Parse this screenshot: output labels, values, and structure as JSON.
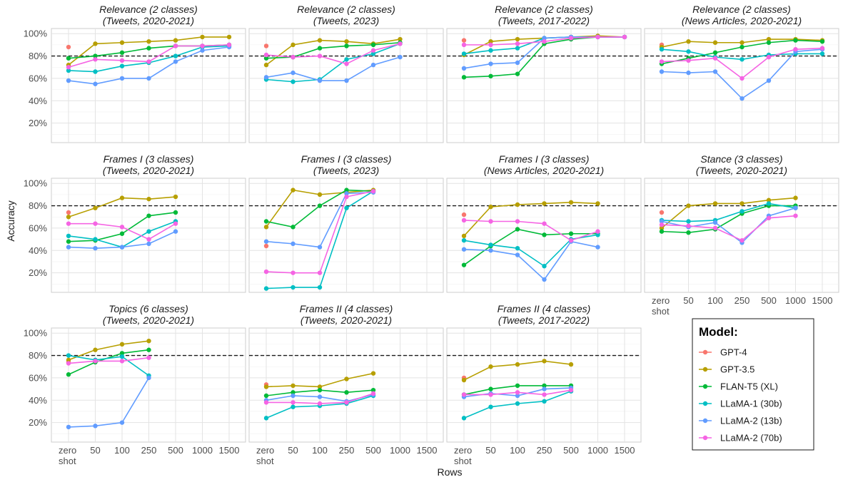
{
  "chart_data": {
    "type": "line",
    "xlabel": "Rows",
    "ylabel": "Accuracy",
    "x_ticks": [
      "zero shot",
      "50",
      "100",
      "250",
      "500",
      "1000",
      "1500"
    ],
    "y_ticks": [
      "20%",
      "40%",
      "60%",
      "80%",
      "100%"
    ],
    "ylim": [
      0,
      100
    ],
    "reference_line": 80,
    "grid": true,
    "legend": {
      "title": "Model:",
      "placement": "bottom-right",
      "entries": [
        {
          "name": "GPT-4",
          "color": "#F8766D"
        },
        {
          "name": "GPT-3.5",
          "color": "#B79F00"
        },
        {
          "name": "FLAN-T5 (XL)",
          "color": "#00BA38"
        },
        {
          "name": "LLaMA-1 (30b)",
          "color": "#00BFC4"
        },
        {
          "name": "LLaMA-2 (13b)",
          "color": "#619CFF"
        },
        {
          "name": "LLaMA-2 (70b)",
          "color": "#F564E3"
        }
      ]
    },
    "panels": [
      {
        "title": [
          "Relevance (2 classes)",
          "(Tweets, 2020-2021)"
        ],
        "series": [
          {
            "model": "GPT-4",
            "values": [
              88
            ]
          },
          {
            "model": "GPT-3.5",
            "values": [
              72,
              91,
              92,
              93,
              94,
              97,
              97
            ]
          },
          {
            "model": "FLAN-T5 (XL)",
            "values": [
              78,
              80,
              83,
              87,
              89,
              89,
              90
            ]
          },
          {
            "model": "LLaMA-1 (30b)",
            "values": [
              67,
              66,
              71,
              74,
              80,
              88,
              89
            ]
          },
          {
            "model": "LLaMA-2 (13b)",
            "values": [
              58,
              55,
              60,
              60,
              75,
              85,
              88
            ]
          },
          {
            "model": "LLaMA-2 (70b)",
            "values": [
              70,
              77,
              76,
              75,
              89,
              89,
              90
            ]
          }
        ]
      },
      {
        "title": [
          "Relevance (2 classes)",
          "(Tweets, 2023)"
        ],
        "series": [
          {
            "model": "GPT-4",
            "values": [
              89
            ]
          },
          {
            "model": "GPT-3.5",
            "values": [
              72,
              90,
              94,
              93,
              91,
              95
            ]
          },
          {
            "model": "FLAN-T5 (XL)",
            "values": [
              78,
              79,
              87,
              89,
              90,
              92
            ]
          },
          {
            "model": "LLaMA-1 (30b)",
            "values": [
              59,
              57,
              59,
              77,
              82,
              91
            ]
          },
          {
            "model": "LLaMA-2 (13b)",
            "values": [
              61,
              65,
              58,
              58,
              72,
              79
            ]
          },
          {
            "model": "LLaMA-2 (70b)",
            "values": [
              81,
              79,
              80,
              73,
              85,
              91
            ]
          }
        ]
      },
      {
        "title": [
          "Relevance (2 classes)",
          "(Tweets, 2017-2022)"
        ],
        "series": [
          {
            "model": "GPT-4",
            "values": [
              94
            ]
          },
          {
            "model": "GPT-3.5",
            "values": [
              81,
              93,
              95,
              96,
              97,
              98,
              97
            ]
          },
          {
            "model": "FLAN-T5 (XL)",
            "values": [
              61,
              62,
              64,
              91,
              95,
              97,
              97
            ]
          },
          {
            "model": "LLaMA-1 (30b)",
            "values": [
              82,
              85,
              87,
              96,
              97,
              97,
              97
            ]
          },
          {
            "model": "LLaMA-2 (13b)",
            "values": [
              69,
              73,
              74,
              96,
              97,
              97,
              97
            ]
          },
          {
            "model": "LLaMA-2 (70b)",
            "values": [
              90,
              90,
              91,
              93,
              96,
              97,
              97
            ]
          }
        ]
      },
      {
        "title": [
          "Relevance (2 classes)",
          "(News Articles, 2020-2021)"
        ],
        "series": [
          {
            "model": "GPT-4",
            "values": [
              90
            ]
          },
          {
            "model": "GPT-3.5",
            "values": [
              88,
              93,
              92,
              92,
              95,
              95,
              94
            ]
          },
          {
            "model": "FLAN-T5 (XL)",
            "values": [
              73,
              78,
              83,
              88,
              92,
              94,
              93
            ]
          },
          {
            "model": "LLaMA-1 (30b)",
            "values": [
              86,
              84,
              79,
              77,
              81,
              82,
              82
            ]
          },
          {
            "model": "LLaMA-2 (13b)",
            "values": [
              66,
              65,
              66,
              42,
              58,
              84,
              86
            ]
          },
          {
            "model": "LLaMA-2 (70b)",
            "values": [
              75,
              76,
              78,
              60,
              79,
              86,
              87
            ]
          }
        ]
      },
      {
        "title": [
          "Frames I (3 classes)",
          "(Tweets, 2020-2021)"
        ],
        "series": [
          {
            "model": "GPT-4",
            "values": [
              74
            ]
          },
          {
            "model": "GPT-3.5",
            "values": [
              70,
              78,
              87,
              86,
              88
            ]
          },
          {
            "model": "FLAN-T5 (XL)",
            "values": [
              48,
              49,
              55,
              71,
              74
            ]
          },
          {
            "model": "LLaMA-1 (30b)",
            "values": [
              53,
              50,
              43,
              57,
              66
            ]
          },
          {
            "model": "LLaMA-2 (13b)",
            "values": [
              43,
              42,
              43,
              46,
              57
            ]
          },
          {
            "model": "LLaMA-2 (70b)",
            "values": [
              64,
              64,
              61,
              50,
              64
            ]
          }
        ]
      },
      {
        "title": [
          "Frames I (3 classes)",
          "(Tweets, 2023)"
        ],
        "series": [
          {
            "model": "GPT-4",
            "values": [
              44
            ]
          },
          {
            "model": "GPT-3.5",
            "values": [
              61,
              94,
              90,
              92,
              94
            ]
          },
          {
            "model": "FLAN-T5 (XL)",
            "values": [
              66,
              61,
              80,
              94,
              93
            ]
          },
          {
            "model": "LLaMA-1 (30b)",
            "values": [
              6,
              7,
              7,
              78,
              93
            ]
          },
          {
            "model": "LLaMA-2 (13b)",
            "values": [
              48,
              46,
              43,
              91,
              92
            ]
          },
          {
            "model": "LLaMA-2 (70b)",
            "values": [
              21,
              20,
              20,
              88,
              93
            ]
          }
        ]
      },
      {
        "title": [
          "Frames I (3 classes)",
          "(News Articles, 2020-2021)"
        ],
        "series": [
          {
            "model": "GPT-4",
            "values": [
              72
            ]
          },
          {
            "model": "GPT-3.5",
            "values": [
              53,
              79,
              81,
              82,
              83,
              82
            ]
          },
          {
            "model": "FLAN-T5 (XL)",
            "values": [
              27,
              44,
              59,
              54,
              55,
              55
            ]
          },
          {
            "model": "LLaMA-1 (30b)",
            "values": [
              49,
              45,
              42,
              26,
              50,
              54
            ]
          },
          {
            "model": "LLaMA-2 (13b)",
            "values": [
              41,
              40,
              36,
              14,
              48,
              43
            ]
          },
          {
            "model": "LLaMA-2 (70b)",
            "values": [
              67,
              66,
              66,
              64,
              49,
              57
            ]
          }
        ]
      },
      {
        "title": [
          "Stance (3 classes)",
          "(Tweets, 2020-2021)"
        ],
        "series": [
          {
            "model": "GPT-4",
            "values": [
              74
            ]
          },
          {
            "model": "GPT-3.5",
            "values": [
              60,
              80,
              82,
              82,
              85,
              87
            ]
          },
          {
            "model": "FLAN-T5 (XL)",
            "values": [
              57,
              56,
              59,
              73,
              80,
              80
            ]
          },
          {
            "model": "LLaMA-1 (30b)",
            "values": [
              67,
              66,
              67,
              75,
              82,
              78
            ]
          },
          {
            "model": "LLaMA-2 (13b)",
            "values": [
              66,
              61,
              65,
              47,
              71,
              78
            ]
          },
          {
            "model": "LLaMA-2 (70b)",
            "values": [
              63,
              62,
              60,
              49,
              69,
              71
            ]
          }
        ]
      },
      {
        "title": [
          "Topics (6 classes)",
          "(Tweets, 2020-2021)"
        ],
        "series": [
          {
            "model": "GPT-4",
            "values": [
              74
            ]
          },
          {
            "model": "GPT-3.5",
            "values": [
              76,
              85,
              90,
              93
            ]
          },
          {
            "model": "FLAN-T5 (XL)",
            "values": [
              63,
              74,
              82,
              85
            ]
          },
          {
            "model": "LLaMA-1 (30b)",
            "values": [
              80,
              76,
              79,
              62
            ]
          },
          {
            "model": "LLaMA-2 (13b)",
            "values": [
              16,
              17,
              20,
              60
            ]
          },
          {
            "model": "LLaMA-2 (70b)",
            "values": [
              73,
              75,
              75,
              78
            ]
          }
        ]
      },
      {
        "title": [
          "Frames II (4 classes)",
          "(Tweets, 2020-2021)"
        ],
        "series": [
          {
            "model": "GPT-4",
            "values": [
              54
            ]
          },
          {
            "model": "GPT-3.5",
            "values": [
              52,
              53,
              52,
              59,
              64
            ]
          },
          {
            "model": "FLAN-T5 (XL)",
            "values": [
              44,
              47,
              49,
              47,
              49
            ]
          },
          {
            "model": "LLaMA-1 (30b)",
            "values": [
              24,
              34,
              35,
              37,
              44
            ]
          },
          {
            "model": "LLaMA-2 (13b)",
            "values": [
              40,
              44,
              43,
              39,
              45
            ]
          },
          {
            "model": "LLaMA-2 (70b)",
            "values": [
              38,
              38,
              37,
              38,
              46
            ]
          }
        ]
      },
      {
        "title": [
          "Frames II (4 classes)",
          "(Tweets, 2017-2022)"
        ],
        "series": [
          {
            "model": "GPT-4",
            "values": [
              60
            ]
          },
          {
            "model": "GPT-3.5",
            "values": [
              58,
              70,
              72,
              75,
              72
            ]
          },
          {
            "model": "FLAN-T5 (XL)",
            "values": [
              45,
              50,
              53,
              53,
              53
            ]
          },
          {
            "model": "LLaMA-1 (30b)",
            "values": [
              24,
              34,
              37,
              39,
              48
            ]
          },
          {
            "model": "LLaMA-2 (13b)",
            "values": [
              43,
              46,
              44,
              50,
              51
            ]
          },
          {
            "model": "LLaMA-2 (70b)",
            "values": [
              45,
              45,
              47,
              45,
              49
            ]
          }
        ]
      }
    ]
  }
}
